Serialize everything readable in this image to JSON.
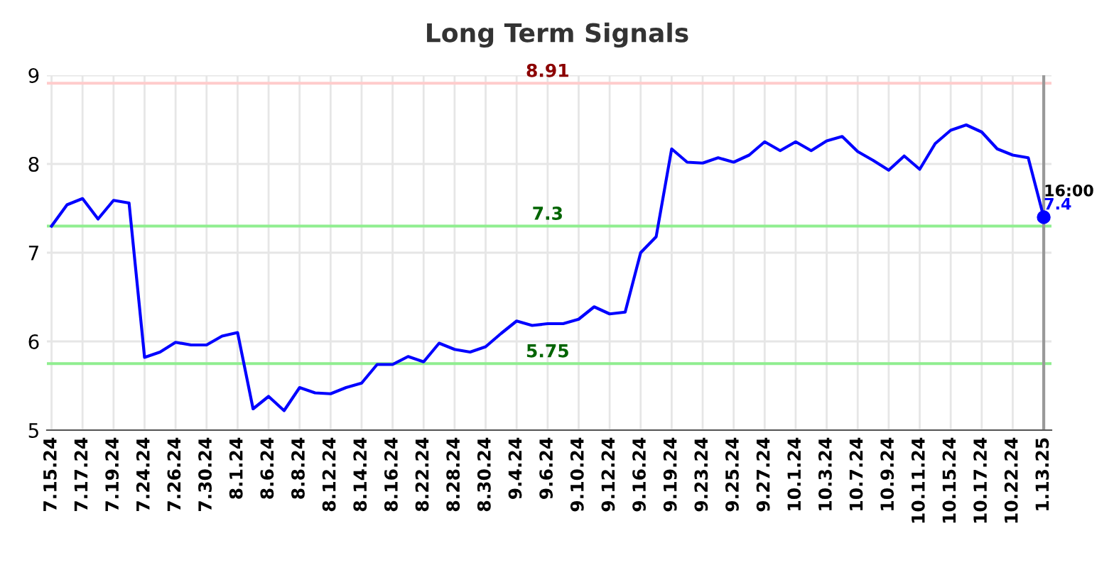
{
  "chart_data": {
    "type": "line",
    "title": "Long Term Signals",
    "categories": [
      "7.15.24",
      null,
      "7.17.24",
      null,
      "7.19.24",
      null,
      "7.24.24",
      null,
      "7.26.24",
      null,
      "7.30.24",
      null,
      "8.1.24",
      null,
      "8.6.24",
      null,
      "8.8.24",
      null,
      "8.12.24",
      null,
      "8.14.24",
      null,
      "8.16.24",
      null,
      "8.22.24",
      null,
      "8.28.24",
      null,
      "8.30.24",
      null,
      "9.4.24",
      null,
      "9.6.24",
      null,
      "9.10.24",
      null,
      "9.12.24",
      null,
      "9.16.24",
      null,
      "9.19.24",
      null,
      "9.23.24",
      null,
      "9.25.24",
      null,
      "9.27.24",
      null,
      "10.1.24",
      null,
      "10.3.24",
      null,
      "10.7.24",
      null,
      "10.9.24",
      null,
      "10.11.24",
      null,
      "10.15.24",
      null,
      "10.17.24",
      null,
      "10.22.24",
      null,
      "1.13.25"
    ],
    "series": [
      {
        "color": "#0000ff",
        "values": [
          7.3,
          7.54,
          7.61,
          7.38,
          7.59,
          7.56,
          5.82,
          5.88,
          5.99,
          5.96,
          5.96,
          6.06,
          6.1,
          5.24,
          5.38,
          5.22,
          5.48,
          5.42,
          5.41,
          5.48,
          5.53,
          5.74,
          5.74,
          5.83,
          5.77,
          5.98,
          5.91,
          5.88,
          5.94,
          6.09,
          6.23,
          6.18,
          6.2,
          6.2,
          6.25,
          6.39,
          6.31,
          6.33,
          7.0,
          7.18,
          8.17,
          8.02,
          8.01,
          8.07,
          8.02,
          8.1,
          8.25,
          8.15,
          8.25,
          8.15,
          8.26,
          8.31,
          8.14,
          8.04,
          7.93,
          8.09,
          7.94,
          8.23,
          8.38,
          8.44,
          8.36,
          8.17,
          8.1,
          8.07,
          7.4
        ]
      }
    ],
    "ylim": [
      5,
      9
    ],
    "yticks": [
      5,
      6,
      7,
      8,
      9
    ],
    "grid": true,
    "line_style": "solid",
    "ref_lines": [
      {
        "axis": "y",
        "value": 8.91,
        "label": "8.91",
        "color": "#ffcccc"
      },
      {
        "axis": "y",
        "value": 7.3,
        "label": "7.3",
        "color": "#90ee90"
      },
      {
        "axis": "y",
        "value": 5.75,
        "label": "5.75",
        "color": "#90ee90"
      },
      {
        "axis": "x",
        "value": "1.13.25",
        "color": "#999999"
      }
    ],
    "annotations": [
      {
        "text": "16:00",
        "x": "1.13.25",
        "y": 7.4
      },
      {
        "text": "7.4",
        "x": "1.13.25",
        "y": 7.4
      }
    ]
  }
}
